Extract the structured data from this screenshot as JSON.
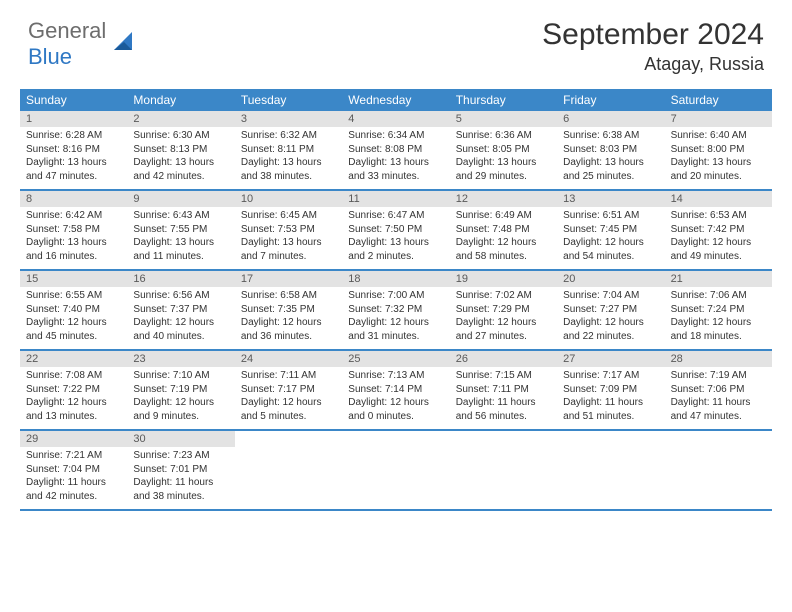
{
  "brand": {
    "general": "General",
    "blue": "Blue"
  },
  "title": {
    "month": "September 2024",
    "location": "Atagay, Russia"
  },
  "colors": {
    "header_bg": "#3b87c8",
    "daynum_bg": "#e3e3e3",
    "text": "#333333",
    "logo_gray": "#6d6d6d",
    "logo_blue": "#2f78c4"
  },
  "weekdays": [
    "Sunday",
    "Monday",
    "Tuesday",
    "Wednesday",
    "Thursday",
    "Friday",
    "Saturday"
  ],
  "weeks": [
    [
      {
        "n": "1",
        "sr": "Sunrise: 6:28 AM",
        "ss": "Sunset: 8:16 PM",
        "dl": "Daylight: 13 hours and 47 minutes."
      },
      {
        "n": "2",
        "sr": "Sunrise: 6:30 AM",
        "ss": "Sunset: 8:13 PM",
        "dl": "Daylight: 13 hours and 42 minutes."
      },
      {
        "n": "3",
        "sr": "Sunrise: 6:32 AM",
        "ss": "Sunset: 8:11 PM",
        "dl": "Daylight: 13 hours and 38 minutes."
      },
      {
        "n": "4",
        "sr": "Sunrise: 6:34 AM",
        "ss": "Sunset: 8:08 PM",
        "dl": "Daylight: 13 hours and 33 minutes."
      },
      {
        "n": "5",
        "sr": "Sunrise: 6:36 AM",
        "ss": "Sunset: 8:05 PM",
        "dl": "Daylight: 13 hours and 29 minutes."
      },
      {
        "n": "6",
        "sr": "Sunrise: 6:38 AM",
        "ss": "Sunset: 8:03 PM",
        "dl": "Daylight: 13 hours and 25 minutes."
      },
      {
        "n": "7",
        "sr": "Sunrise: 6:40 AM",
        "ss": "Sunset: 8:00 PM",
        "dl": "Daylight: 13 hours and 20 minutes."
      }
    ],
    [
      {
        "n": "8",
        "sr": "Sunrise: 6:42 AM",
        "ss": "Sunset: 7:58 PM",
        "dl": "Daylight: 13 hours and 16 minutes."
      },
      {
        "n": "9",
        "sr": "Sunrise: 6:43 AM",
        "ss": "Sunset: 7:55 PM",
        "dl": "Daylight: 13 hours and 11 minutes."
      },
      {
        "n": "10",
        "sr": "Sunrise: 6:45 AM",
        "ss": "Sunset: 7:53 PM",
        "dl": "Daylight: 13 hours and 7 minutes."
      },
      {
        "n": "11",
        "sr": "Sunrise: 6:47 AM",
        "ss": "Sunset: 7:50 PM",
        "dl": "Daylight: 13 hours and 2 minutes."
      },
      {
        "n": "12",
        "sr": "Sunrise: 6:49 AM",
        "ss": "Sunset: 7:48 PM",
        "dl": "Daylight: 12 hours and 58 minutes."
      },
      {
        "n": "13",
        "sr": "Sunrise: 6:51 AM",
        "ss": "Sunset: 7:45 PM",
        "dl": "Daylight: 12 hours and 54 minutes."
      },
      {
        "n": "14",
        "sr": "Sunrise: 6:53 AM",
        "ss": "Sunset: 7:42 PM",
        "dl": "Daylight: 12 hours and 49 minutes."
      }
    ],
    [
      {
        "n": "15",
        "sr": "Sunrise: 6:55 AM",
        "ss": "Sunset: 7:40 PM",
        "dl": "Daylight: 12 hours and 45 minutes."
      },
      {
        "n": "16",
        "sr": "Sunrise: 6:56 AM",
        "ss": "Sunset: 7:37 PM",
        "dl": "Daylight: 12 hours and 40 minutes."
      },
      {
        "n": "17",
        "sr": "Sunrise: 6:58 AM",
        "ss": "Sunset: 7:35 PM",
        "dl": "Daylight: 12 hours and 36 minutes."
      },
      {
        "n": "18",
        "sr": "Sunrise: 7:00 AM",
        "ss": "Sunset: 7:32 PM",
        "dl": "Daylight: 12 hours and 31 minutes."
      },
      {
        "n": "19",
        "sr": "Sunrise: 7:02 AM",
        "ss": "Sunset: 7:29 PM",
        "dl": "Daylight: 12 hours and 27 minutes."
      },
      {
        "n": "20",
        "sr": "Sunrise: 7:04 AM",
        "ss": "Sunset: 7:27 PM",
        "dl": "Daylight: 12 hours and 22 minutes."
      },
      {
        "n": "21",
        "sr": "Sunrise: 7:06 AM",
        "ss": "Sunset: 7:24 PM",
        "dl": "Daylight: 12 hours and 18 minutes."
      }
    ],
    [
      {
        "n": "22",
        "sr": "Sunrise: 7:08 AM",
        "ss": "Sunset: 7:22 PM",
        "dl": "Daylight: 12 hours and 13 minutes."
      },
      {
        "n": "23",
        "sr": "Sunrise: 7:10 AM",
        "ss": "Sunset: 7:19 PM",
        "dl": "Daylight: 12 hours and 9 minutes."
      },
      {
        "n": "24",
        "sr": "Sunrise: 7:11 AM",
        "ss": "Sunset: 7:17 PM",
        "dl": "Daylight: 12 hours and 5 minutes."
      },
      {
        "n": "25",
        "sr": "Sunrise: 7:13 AM",
        "ss": "Sunset: 7:14 PM",
        "dl": "Daylight: 12 hours and 0 minutes."
      },
      {
        "n": "26",
        "sr": "Sunrise: 7:15 AM",
        "ss": "Sunset: 7:11 PM",
        "dl": "Daylight: 11 hours and 56 minutes."
      },
      {
        "n": "27",
        "sr": "Sunrise: 7:17 AM",
        "ss": "Sunset: 7:09 PM",
        "dl": "Daylight: 11 hours and 51 minutes."
      },
      {
        "n": "28",
        "sr": "Sunrise: 7:19 AM",
        "ss": "Sunset: 7:06 PM",
        "dl": "Daylight: 11 hours and 47 minutes."
      }
    ],
    [
      {
        "n": "29",
        "sr": "Sunrise: 7:21 AM",
        "ss": "Sunset: 7:04 PM",
        "dl": "Daylight: 11 hours and 42 minutes."
      },
      {
        "n": "30",
        "sr": "Sunrise: 7:23 AM",
        "ss": "Sunset: 7:01 PM",
        "dl": "Daylight: 11 hours and 38 minutes."
      },
      null,
      null,
      null,
      null,
      null
    ]
  ]
}
